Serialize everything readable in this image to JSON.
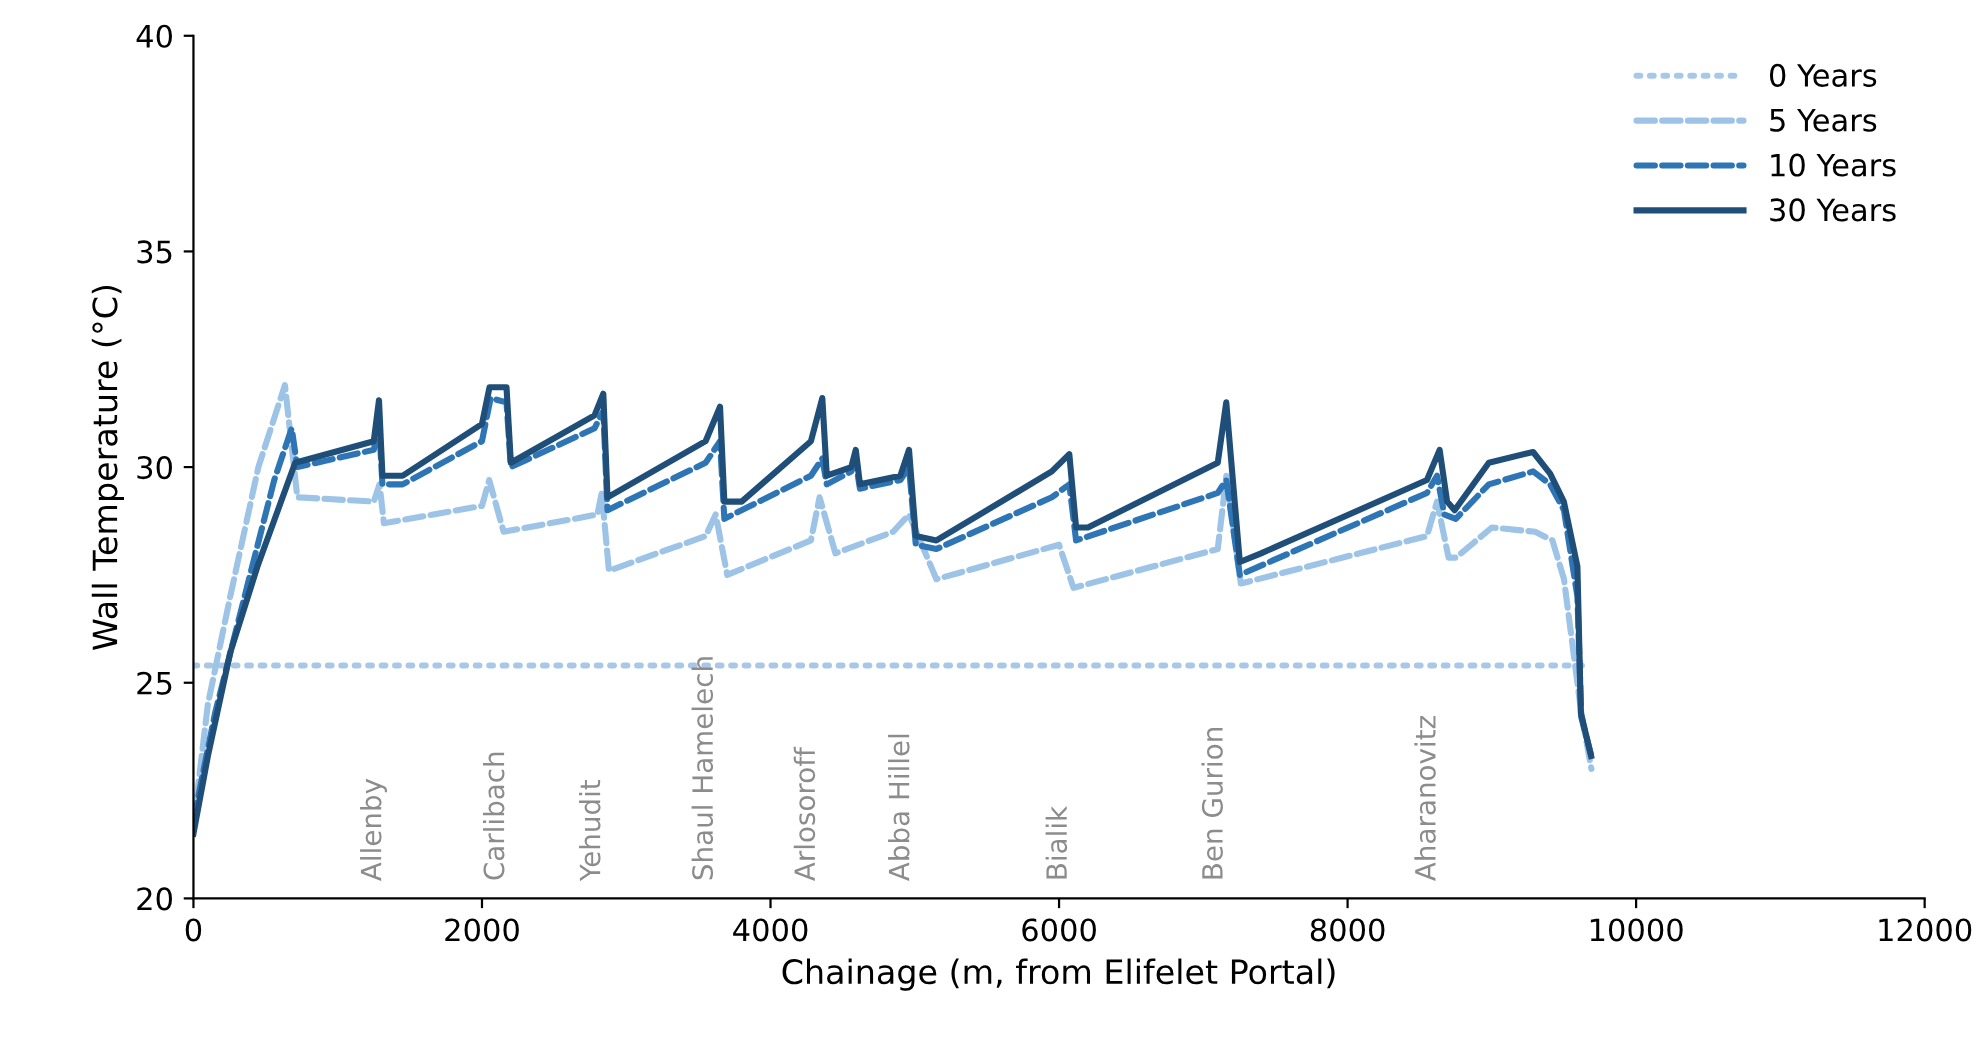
{
  "chart_data": {
    "type": "line",
    "xlabel": "Chainage (m, from Elifelet Portal)",
    "ylabel": "Wall Temperature (°C)",
    "xlim": [
      0,
      12000
    ],
    "xticks": [
      0,
      2000,
      4000,
      6000,
      8000,
      10000,
      12000
    ],
    "ylim": [
      20,
      40
    ],
    "yticks": [
      20,
      25,
      30,
      35,
      40
    ],
    "grid": false,
    "legend": "top right",
    "series": [
      {
        "name": "0 Years",
        "color": "#a9c8e8",
        "line_style": "dotted",
        "x": [
          0,
          9650
        ],
        "values": [
          25.4,
          25.4
        ]
      },
      {
        "name": "5 Years",
        "color": "#9dc3e6",
        "line_style": "dashed",
        "x": [
          0,
          100,
          255,
          450,
          634,
          720,
          1250,
          1290,
          1320,
          2000,
          2050,
          2150,
          2800,
          2830,
          2880,
          3550,
          3620,
          3700,
          4280,
          4340,
          4450,
          4850,
          4960,
          5150,
          6000,
          6100,
          7100,
          7160,
          7260,
          8550,
          8620,
          8700,
          8750,
          9000,
          9300,
          9420,
          9500,
          9620,
          9690
        ],
        "values": [
          21.7,
          24.5,
          27.0,
          30.0,
          31.9,
          29.3,
          29.2,
          29.6,
          28.7,
          29.1,
          29.7,
          28.5,
          28.9,
          29.4,
          27.6,
          28.4,
          28.9,
          27.5,
          28.3,
          29.3,
          28.0,
          28.5,
          28.9,
          27.4,
          28.2,
          27.2,
          28.1,
          29.8,
          27.3,
          28.4,
          29.2,
          27.9,
          27.9,
          28.6,
          28.5,
          28.3,
          27.4,
          24.3,
          23.0
        ]
      },
      {
        "name": "10 Years",
        "color": "#2e75b6",
        "line_style": "dashed",
        "x": [
          0,
          150,
          400,
          560,
          681,
          720,
          1250,
          1286,
          1310,
          1450,
          2000,
          2060,
          2170,
          2200,
          2780,
          2841,
          2870,
          3550,
          3650,
          3680,
          4280,
          4359,
          4390,
          4560,
          4591,
          4620,
          4900,
          4960,
          5007,
          5150,
          5950,
          6071,
          6118,
          7100,
          7159,
          7253,
          8550,
          8620,
          8671,
          8750,
          8979,
          9286,
          9404,
          9500,
          9593,
          9620,
          9690
        ],
        "values": [
          21.8,
          24.3,
          27.6,
          29.7,
          30.9,
          30.0,
          30.4,
          31.0,
          29.6,
          29.6,
          30.6,
          31.6,
          31.5,
          30.0,
          30.9,
          31.3,
          29.0,
          30.1,
          30.6,
          28.8,
          29.8,
          30.2,
          29.6,
          29.9,
          30.1,
          29.5,
          29.7,
          30.0,
          28.2,
          28.1,
          29.3,
          29.6,
          28.3,
          29.4,
          29.7,
          27.5,
          29.4,
          29.8,
          28.9,
          28.8,
          29.6,
          29.9,
          29.6,
          29.0,
          27.0,
          24.2,
          23.3
        ]
      },
      {
        "name": "30 Years",
        "color": "#1f4e79",
        "line_style": "solid",
        "x": [
          0,
          100,
          255,
          444,
          705,
          1250,
          1286,
          1310,
          1450,
          2000,
          2052,
          2170,
          2200,
          2780,
          2841,
          2870,
          3550,
          3650,
          3680,
          3800,
          4280,
          4359,
          4390,
          4560,
          4591,
          4620,
          4900,
          4960,
          5007,
          5150,
          5950,
          6071,
          6118,
          6200,
          7100,
          7159,
          7253,
          7400,
          8550,
          8638,
          8690,
          8742,
          8979,
          9286,
          9404,
          9499,
          9593,
          9617,
          9688
        ],
        "values": [
          21.5,
          23.3,
          25.7,
          27.7,
          30.1,
          30.6,
          31.55,
          29.8,
          29.8,
          31.0,
          31.85,
          31.85,
          30.1,
          31.2,
          31.7,
          29.3,
          30.6,
          31.4,
          29.2,
          29.2,
          30.6,
          31.6,
          29.8,
          30.0,
          30.4,
          29.6,
          29.8,
          30.4,
          28.4,
          28.3,
          29.9,
          30.3,
          28.6,
          28.6,
          30.1,
          31.5,
          27.8,
          28.0,
          29.7,
          30.4,
          29.2,
          29.0,
          30.1,
          30.35,
          29.85,
          29.2,
          27.7,
          24.3,
          23.3
        ]
      }
    ],
    "annotations": [
      "Allenby",
      "Carlibach",
      "Yehudit",
      "Shaul Hamelech",
      "Arlosoroff",
      "Abba Hillel",
      "Bialik",
      "Ben Gurion",
      "Aharanovitz"
    ]
  }
}
